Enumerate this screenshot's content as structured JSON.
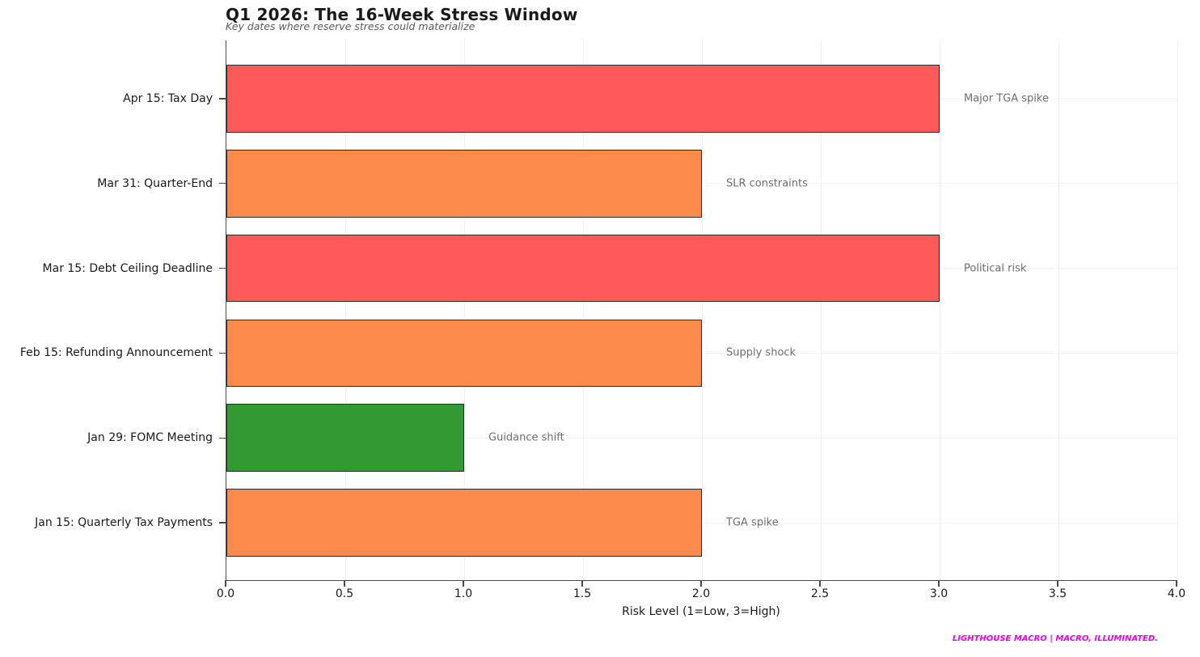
{
  "header": {
    "title": "Q1 2026: The 16-Week Stress Window",
    "subtitle": "Key dates where reserve stress could materialize"
  },
  "chart_data": {
    "type": "bar",
    "orientation": "horizontal",
    "title": "Q1 2026: The 16-Week Stress Window",
    "subtitle": "Key dates where reserve stress could materialize",
    "xlabel": "Risk Level (1=Low, 3=High)",
    "xlim": [
      0,
      4
    ],
    "xticks": [
      "0.0",
      "0.5",
      "1.0",
      "1.5",
      "2.0",
      "2.5",
      "3.0",
      "3.5",
      "4.0"
    ],
    "grid": "on",
    "categories": [
      "Apr 15: Tax Day",
      "Mar 31: Quarter-End",
      "Mar 15: Debt Ceiling Deadline",
      "Feb 15: Refunding Announcement",
      "Jan 29: FOMC Meeting",
      "Jan 15: Quarterly Tax Payments"
    ],
    "values": [
      3,
      2,
      3,
      2,
      1,
      2
    ],
    "rows": [
      {
        "label": "Apr 15: Tax Day",
        "value": 3,
        "color": "#FF5A5A",
        "annotation": "Major TGA spike"
      },
      {
        "label": "Mar 31: Quarter-End",
        "value": 2,
        "color": "#FC8A4B",
        "annotation": "SLR constraints"
      },
      {
        "label": "Mar 15: Debt Ceiling Deadline",
        "value": 3,
        "color": "#FF5A5A",
        "annotation": "Political risk"
      },
      {
        "label": "Feb 15: Refunding Announcement",
        "value": 2,
        "color": "#FC8A4B",
        "annotation": "Supply shock"
      },
      {
        "label": "Jan 29: FOMC Meeting",
        "value": 1,
        "color": "#339933",
        "annotation": "Guidance shift"
      },
      {
        "label": "Jan 15: Quarterly Tax Payments",
        "value": 2,
        "color": "#FC8A4B",
        "annotation": "TGA spike"
      }
    ],
    "colors": {
      "high_risk": "#FF5A5A",
      "medium_risk": "#FC8A4B",
      "low_risk": "#339933",
      "annotation_text": "#6e6e6e"
    }
  },
  "footer": {
    "brand": "LIGHTHOUSE MACRO | MACRO, ILLUMINATED.",
    "color": "#EE00EE"
  }
}
